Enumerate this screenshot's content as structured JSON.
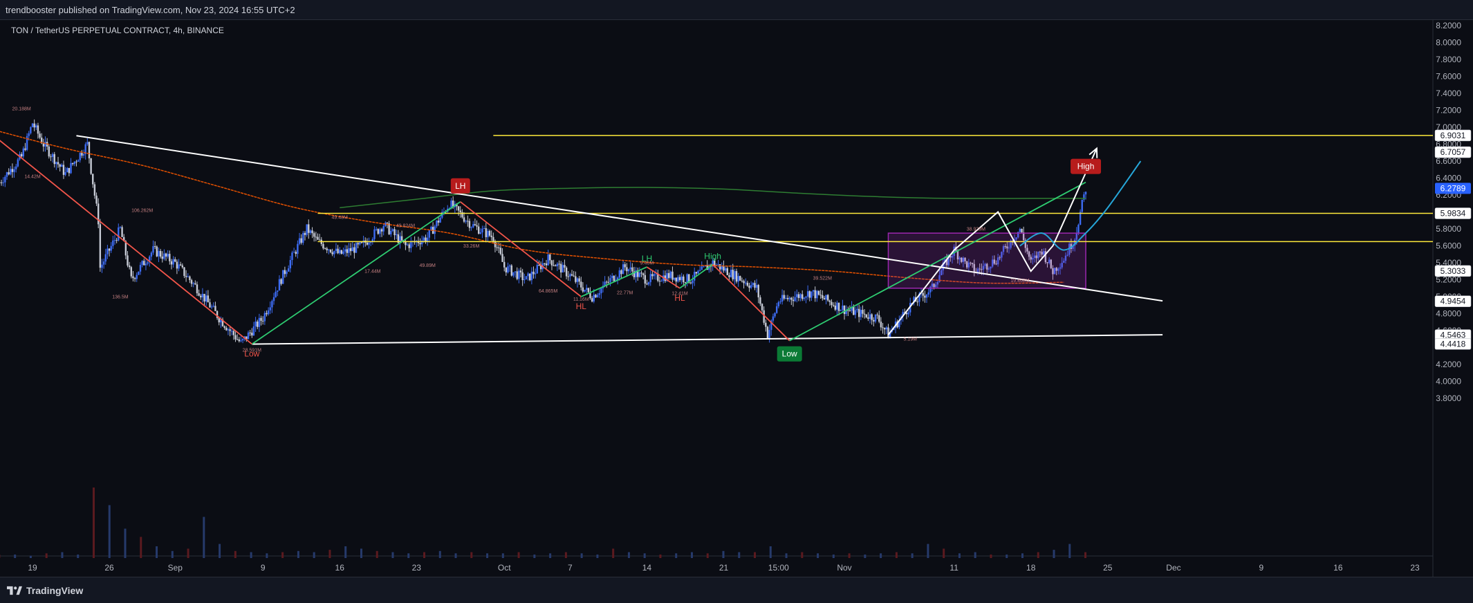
{
  "header": {
    "published_text": "trendbooster published on TradingView.com, Nov 23, 2024 16:55 UTC+2"
  },
  "chart_title": "TON / TetherUS PERPETUAL CONTRACT, 4h, BINANCE",
  "footer": {
    "brand": "TradingView"
  },
  "colors": {
    "background": "#0b0d14",
    "candle_up": "#3d6cf4",
    "candle_down": "#c7cbd6",
    "trendline": "#ffffff",
    "uptrend": "#2ecc71",
    "downtrend": "#f2554a",
    "resistance": "#ffeb3b",
    "range_box": "#9c27b0",
    "ema": "#e65100",
    "long_ma": "#2e7d32",
    "projection": "#26a6d9",
    "current_price_tag": "#2962ff",
    "high_marker": "#b71c1c",
    "low_marker": "#0b7a35"
  },
  "chart_data": {
    "type": "candlestick",
    "symbol": "TON / TetherUS PERPETUAL CONTRACT",
    "timeframe": "4h",
    "exchange": "BINANCE",
    "ylim": [
      3.7,
      8.25
    ],
    "y_ticks": [
      "8.2000",
      "8.0000",
      "7.8000",
      "7.6000",
      "7.4000",
      "7.2000",
      "7.0000",
      "6.8000",
      "6.6000",
      "6.4000",
      "6.2000",
      "6.0000",
      "5.8000",
      "5.6000",
      "5.4000",
      "5.2000",
      "5.0000",
      "4.8000",
      "4.6000",
      "4.2000",
      "4.0000",
      "3.8000"
    ],
    "x_ticks": [
      "19",
      "26",
      "Sep",
      "9",
      "16",
      "23",
      "Oct",
      "7",
      "14",
      "21",
      "15:00",
      "Nov",
      "11",
      "18",
      "25",
      "Dec",
      "9",
      "16",
      "23"
    ],
    "price_tags": [
      {
        "label": "6.9031",
        "value": 6.9031,
        "kind": "level"
      },
      {
        "label": "6.7057",
        "value": 6.7057,
        "kind": "level"
      },
      {
        "label": "6.2789",
        "value": 6.2789,
        "kind": "current"
      },
      {
        "label": "5.9834",
        "value": 5.9834,
        "kind": "level"
      },
      {
        "label": "5.3033",
        "value": 5.3033,
        "kind": "level"
      },
      {
        "label": "4.9454",
        "value": 4.9454,
        "kind": "level"
      },
      {
        "label": "4.5463",
        "value": 4.5463,
        "kind": "level"
      },
      {
        "label": "4.4418",
        "value": 4.4418,
        "kind": "level"
      }
    ],
    "price_path": [
      {
        "date": "2024-08-16",
        "price": 6.35
      },
      {
        "date": "2024-08-18",
        "price": 6.65
      },
      {
        "date": "2024-08-19",
        "price": 7.05
      },
      {
        "date": "2024-08-20",
        "price": 6.8
      },
      {
        "date": "2024-08-22",
        "price": 6.45
      },
      {
        "date": "2024-08-24",
        "price": 6.8
      },
      {
        "date": "2024-08-25",
        "price": 5.9
      },
      {
        "date": "2024-08-25",
        "price": 5.3
      },
      {
        "date": "2024-08-27",
        "price": 5.8
      },
      {
        "date": "2024-08-28",
        "price": 5.2
      },
      {
        "date": "2024-08-30",
        "price": 5.55
      },
      {
        "date": "2024-09-01",
        "price": 5.4
      },
      {
        "date": "2024-09-03",
        "price": 5.1
      },
      {
        "date": "2024-09-05",
        "price": 4.75
      },
      {
        "date": "2024-09-07",
        "price": 4.45
      },
      {
        "date": "2024-09-09",
        "price": 4.75
      },
      {
        "date": "2024-09-11",
        "price": 5.3
      },
      {
        "date": "2024-09-13",
        "price": 5.8
      },
      {
        "date": "2024-09-14",
        "price": 5.65
      },
      {
        "date": "2024-09-16",
        "price": 5.5
      },
      {
        "date": "2024-09-18",
        "price": 5.6
      },
      {
        "date": "2024-09-20",
        "price": 5.85
      },
      {
        "date": "2024-09-22",
        "price": 5.6
      },
      {
        "date": "2024-09-24",
        "price": 5.7
      },
      {
        "date": "2024-09-26",
        "price": 6.1
      },
      {
        "date": "2024-09-28",
        "price": 5.85
      },
      {
        "date": "2024-09-30",
        "price": 5.7
      },
      {
        "date": "2024-10-01",
        "price": 5.35
      },
      {
        "date": "2024-10-03",
        "price": 5.2
      },
      {
        "date": "2024-10-05",
        "price": 5.45
      },
      {
        "date": "2024-10-07",
        "price": 5.25
      },
      {
        "date": "2024-10-09",
        "price": 5.0
      },
      {
        "date": "2024-10-12",
        "price": 5.35
      },
      {
        "date": "2024-10-14",
        "price": 5.2
      },
      {
        "date": "2024-10-16",
        "price": 5.25
      },
      {
        "date": "2024-10-18",
        "price": 5.2
      },
      {
        "date": "2024-10-20",
        "price": 5.4
      },
      {
        "date": "2024-10-22",
        "price": 5.25
      },
      {
        "date": "2024-10-24",
        "price": 5.1
      },
      {
        "date": "2024-10-25",
        "price": 4.55
      },
      {
        "date": "2024-10-26",
        "price": 4.95
      },
      {
        "date": "2024-10-29",
        "price": 5.05
      },
      {
        "date": "2024-11-01",
        "price": 4.85
      },
      {
        "date": "2024-11-04",
        "price": 4.75
      },
      {
        "date": "2024-11-05",
        "price": 4.55
      },
      {
        "date": "2024-11-07",
        "price": 4.9
      },
      {
        "date": "2024-11-09",
        "price": 5.1
      },
      {
        "date": "2024-11-10",
        "price": 5.35
      },
      {
        "date": "2024-11-11",
        "price": 5.55
      },
      {
        "date": "2024-11-12",
        "price": 5.4
      },
      {
        "date": "2024-11-13",
        "price": 5.3
      },
      {
        "date": "2024-11-15",
        "price": 5.45
      },
      {
        "date": "2024-11-17",
        "price": 5.8
      },
      {
        "date": "2024-11-18",
        "price": 5.4
      },
      {
        "date": "2024-11-19",
        "price": 5.55
      },
      {
        "date": "2024-11-20",
        "price": 5.3
      },
      {
        "date": "2024-11-21",
        "price": 5.45
      },
      {
        "date": "2024-11-22",
        "price": 5.7
      },
      {
        "date": "2024-11-23",
        "price": 6.2789
      }
    ],
    "volume_scale_pct": [
      3,
      3,
      2,
      4,
      5,
      3,
      60,
      45,
      25,
      18,
      10,
      6,
      8,
      35,
      12,
      6,
      5,
      4,
      5,
      6,
      5,
      7,
      10,
      8,
      6,
      5,
      4,
      5,
      6,
      4,
      5,
      4,
      4,
      5,
      3,
      4,
      5,
      4,
      3,
      8,
      5,
      4,
      3,
      4,
      5,
      4,
      6,
      5,
      5,
      10,
      4,
      5,
      4,
      3,
      4,
      3,
      4,
      5,
      4,
      12,
      8,
      4,
      5,
      3,
      3,
      4,
      5,
      7,
      12,
      5
    ],
    "horizontal_levels": [
      {
        "value": 6.9031,
        "from": "2024-09-30",
        "to": "2024-12-31"
      },
      {
        "value": 5.9834,
        "from": "2024-09-14",
        "to": "2024-12-31"
      },
      {
        "value": 5.65,
        "from": "2024-09-14",
        "to": "2024-12-31"
      }
    ],
    "trendlines": [
      {
        "name": "descending",
        "from": {
          "date": "2024-08-23",
          "price": 6.9
        },
        "to": {
          "date": "2024-11-30",
          "price": 4.95
        }
      },
      {
        "name": "base",
        "from": {
          "date": "2024-09-08",
          "price": 4.44
        },
        "to": {
          "date": "2024-11-30",
          "price": 4.55
        }
      }
    ],
    "swing_paths": [
      {
        "name": "uptrend-1",
        "color": "uptrend",
        "points": [
          {
            "date": "2024-09-08",
            "price": 4.44
          },
          {
            "date": "2024-09-27",
            "price": 6.12
          }
        ]
      },
      {
        "name": "downtrend-1",
        "color": "downtrend",
        "points": [
          {
            "date": "2024-08-15",
            "price": 6.95
          },
          {
            "date": "2024-09-08",
            "price": 4.44
          }
        ]
      },
      {
        "name": "downtrend-2",
        "color": "downtrend",
        "points": [
          {
            "date": "2024-09-27",
            "price": 6.12
          },
          {
            "date": "2024-10-08",
            "price": 5.0
          }
        ]
      },
      {
        "name": "uptrend-2",
        "color": "uptrend",
        "points": [
          {
            "date": "2024-10-08",
            "price": 5.0
          },
          {
            "date": "2024-10-14",
            "price": 5.35
          }
        ]
      },
      {
        "name": "downtrend-3",
        "color": "downtrend",
        "points": [
          {
            "date": "2024-10-14",
            "price": 5.35
          },
          {
            "date": "2024-10-17",
            "price": 5.1
          }
        ]
      },
      {
        "name": "uptrend-3",
        "color": "uptrend",
        "points": [
          {
            "date": "2024-10-17",
            "price": 5.1
          },
          {
            "date": "2024-10-20",
            "price": 5.38
          }
        ]
      },
      {
        "name": "downtrend-4",
        "color": "downtrend",
        "points": [
          {
            "date": "2024-10-20",
            "price": 5.38
          },
          {
            "date": "2024-10-27",
            "price": 4.48
          }
        ]
      },
      {
        "name": "uptrend-4",
        "color": "uptrend",
        "points": [
          {
            "date": "2024-10-27",
            "price": 4.48
          },
          {
            "date": "2024-11-23",
            "price": 6.35
          }
        ]
      }
    ],
    "range_box": {
      "from": "2024-11-05",
      "to": "2024-11-23",
      "top": 5.75,
      "bottom": 5.1
    },
    "ema_path": [
      {
        "date": "2024-08-16",
        "price": 6.95
      },
      {
        "date": "2024-08-22",
        "price": 6.75
      },
      {
        "date": "2024-08-29",
        "price": 6.55
      },
      {
        "date": "2024-09-05",
        "price": 6.3
      },
      {
        "date": "2024-09-12",
        "price": 6.05
      },
      {
        "date": "2024-09-19",
        "price": 5.88
      },
      {
        "date": "2024-09-26",
        "price": 5.75
      },
      {
        "date": "2024-10-03",
        "price": 5.55
      },
      {
        "date": "2024-10-10",
        "price": 5.45
      },
      {
        "date": "2024-10-17",
        "price": 5.38
      },
      {
        "date": "2024-10-24",
        "price": 5.35
      },
      {
        "date": "2024-10-31",
        "price": 5.3
      },
      {
        "date": "2024-11-07",
        "price": 5.22
      },
      {
        "date": "2024-11-14",
        "price": 5.16
      },
      {
        "date": "2024-11-21",
        "price": 5.17
      }
    ],
    "long_ma_path": [
      {
        "date": "2024-09-16",
        "price": 6.05
      },
      {
        "date": "2024-09-23",
        "price": 6.15
      },
      {
        "date": "2024-09-30",
        "price": 6.25
      },
      {
        "date": "2024-10-07",
        "price": 6.28
      },
      {
        "date": "2024-10-14",
        "price": 6.29
      },
      {
        "date": "2024-10-21",
        "price": 6.27
      },
      {
        "date": "2024-10-28",
        "price": 6.22
      },
      {
        "date": "2024-11-04",
        "price": 6.18
      },
      {
        "date": "2024-11-11",
        "price": 6.16
      },
      {
        "date": "2024-11-18",
        "price": 6.16
      },
      {
        "date": "2024-11-23",
        "price": 6.16
      }
    ],
    "projection_path_white": [
      {
        "date": "2024-11-05",
        "price": 4.55
      },
      {
        "date": "2024-11-11",
        "price": 5.55
      },
      {
        "date": "2024-11-15",
        "price": 6.0
      },
      {
        "date": "2024-11-18",
        "price": 5.3
      },
      {
        "date": "2024-11-20",
        "price": 5.6
      },
      {
        "date": "2024-11-24",
        "price": 6.75
      }
    ],
    "projection_path_blue": [
      {
        "date": "2024-11-17",
        "price": 5.6
      },
      {
        "date": "2024-11-19",
        "price": 5.75
      },
      {
        "date": "2024-11-21",
        "price": 5.55
      },
      {
        "date": "2024-11-23",
        "price": 5.75
      },
      {
        "date": "2024-11-25",
        "price": 6.05
      },
      {
        "date": "2024-11-28",
        "price": 6.6
      }
    ],
    "markers": [
      {
        "label": "LH",
        "date": "2024-09-27",
        "price": 6.12,
        "style": "box-red"
      },
      {
        "label": "High",
        "date": "2024-11-23",
        "price": 6.35,
        "style": "box-red"
      },
      {
        "label": "Low",
        "date": "2024-10-27",
        "price": 4.48,
        "style": "box-green"
      },
      {
        "label": "LH",
        "date": "2024-10-14",
        "price": 5.35,
        "style": "text-green"
      },
      {
        "label": "High",
        "date": "2024-10-20",
        "price": 5.38,
        "style": "text-green"
      },
      {
        "label": "HL",
        "date": "2024-10-08",
        "price": 5.0,
        "style": "text-red"
      },
      {
        "label": "HL",
        "date": "2024-10-17",
        "price": 5.1,
        "style": "text-red"
      },
      {
        "label": "Low",
        "date": "2024-09-08",
        "price": 4.44,
        "style": "text-red"
      }
    ],
    "volume_annotations": [
      {
        "label": "20.188M",
        "date": "2024-08-18",
        "price": 7.2
      },
      {
        "label": "106.262M",
        "date": "2024-08-29",
        "price": 6.0
      },
      {
        "label": "136.5M",
        "date": "2024-08-27",
        "price": 4.98
      },
      {
        "label": "49.48M",
        "date": "2024-09-16",
        "price": 5.92
      },
      {
        "label": "49.824M",
        "date": "2024-09-22",
        "price": 5.82
      },
      {
        "label": "17.44M",
        "date": "2024-09-19",
        "price": 5.28
      },
      {
        "label": "49.89M",
        "date": "2024-09-24",
        "price": 5.35
      },
      {
        "label": "64.865M",
        "date": "2024-10-05",
        "price": 5.05
      },
      {
        "label": "33.26M",
        "date": "2024-09-28",
        "price": 5.58
      },
      {
        "label": "11.16M",
        "date": "2024-10-08",
        "price": 4.95
      },
      {
        "label": "22.77M",
        "date": "2024-10-12",
        "price": 5.03
      },
      {
        "label": "12.41M",
        "date": "2024-10-17",
        "price": 5.02
      },
      {
        "label": "9.46M",
        "date": "2024-10-14",
        "price": 5.38
      },
      {
        "label": "39.522M",
        "date": "2024-10-30",
        "price": 5.2
      },
      {
        "label": "38.929M",
        "date": "2024-11-13",
        "price": 5.78
      },
      {
        "label": "19.468M",
        "date": "2024-11-17",
        "price": 5.17
      },
      {
        "label": "5.19M",
        "date": "2024-11-07",
        "price": 4.48
      },
      {
        "label": "14.42M",
        "date": "2024-08-19",
        "price": 6.4
      },
      {
        "label": "28.591M",
        "date": "2024-09-08",
        "price": 4.35
      }
    ]
  }
}
